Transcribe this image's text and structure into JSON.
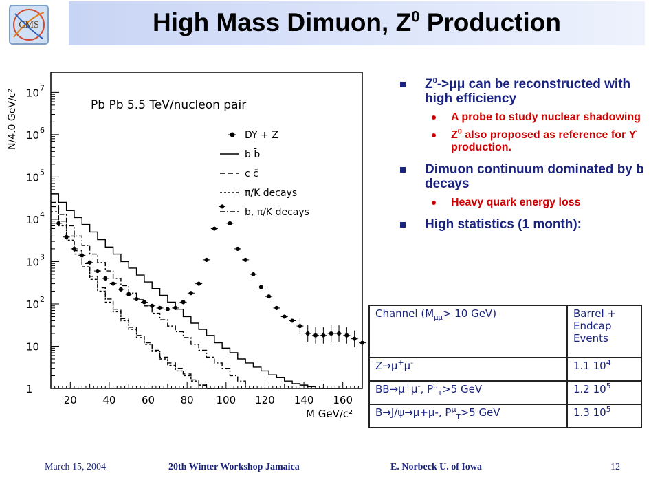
{
  "slide": {
    "title": "High Mass Dimuon, Z",
    "title_sup": "0",
    "title_suffix": " Production",
    "logo_text": "CMS"
  },
  "bullets": [
    {
      "level": 1,
      "html": "Z<sup>0</sup>-&gt;μμ can be reconstructed with high efficiency",
      "text": "Z0->μμ can be reconstructed with high efficiency"
    },
    {
      "level": 2,
      "html": "A probe to study nuclear shadowing",
      "text": "A probe to study nuclear shadowing"
    },
    {
      "level": 2,
      "html": "Z<sup>0</sup> also proposed as reference for ϒ production.",
      "text": "Z0 also proposed as reference for ϒ production."
    },
    {
      "level": 1,
      "html": "Dimuon continuum dominated by b decays",
      "text": "Dimuon continuum dominated by b decays"
    },
    {
      "level": 2,
      "html": "Heavy quark energy loss",
      "text": "Heavy quark energy loss"
    },
    {
      "level": 1,
      "html": "High statistics (1 month):",
      "text": "High statistics (1 month):"
    }
  ],
  "table": {
    "header": {
      "channel": "Channel (M<sub>μμ</sub>&gt; 10 GeV)",
      "events": "Barrel + Endcap<br>Events",
      "channel_text": "Channel (Mμμ> 10 GeV)",
      "events_text": "Barrel + Endcap Events"
    },
    "rows": [
      {
        "channel": "Z→μ<sup>+</sup>μ<sup>-</sup>",
        "events": "1.1 10<sup>4</sup>",
        "channel_text": "Z→μ+μ-",
        "events_text": "1.1 104"
      },
      {
        "channel": "BB→μ<sup>+</sup>μ<sup>-</sup>, P<sup>μ</sup><sub>T</sub>&gt;5 GeV",
        "events": "1.2 10<sup>5</sup>",
        "channel_text": "BB→μ+μ-, PμT>5 GeV",
        "events_text": "1.2 105"
      },
      {
        "channel": "B→J/ψ→μ+μ-, P<sup>μ</sup><sub>T</sub>&gt;5 GeV",
        "events": "1.3 10<sup>5</sup>",
        "channel_text": "B→J/ψ→μ+μ-, PμT>5 GeV",
        "events_text": "1.3 105"
      }
    ]
  },
  "footer": {
    "date": "March 15, 2004",
    "event": "20th Winter Workshop Jamaica",
    "author": "E. Norbeck U. of Iowa",
    "page": "12"
  },
  "chart_data": {
    "type": "line",
    "title": "",
    "xlabel": "M GeV/c²",
    "ylabel": "N/4.0 GeV/c²",
    "annotation": "Pb  Pb  5.5 TeV/nucleon pair",
    "log_y": true,
    "xlim": [
      10,
      170
    ],
    "ylim": [
      1,
      30000000
    ],
    "x_ticks": [
      20,
      40,
      60,
      80,
      100,
      120,
      140,
      160
    ],
    "y_ticks": [
      {
        "value": 1,
        "label": "1"
      },
      {
        "value": 10,
        "label": "10"
      },
      {
        "value": 100,
        "label": "10",
        "exp": "2"
      },
      {
        "value": 1000,
        "label": "10",
        "exp": "3"
      },
      {
        "value": 10000,
        "label": "10",
        "exp": "4"
      },
      {
        "value": 100000,
        "label": "10",
        "exp": "5"
      },
      {
        "value": 1000000,
        "label": "10",
        "exp": "6"
      },
      {
        "value": 10000000,
        "label": "10",
        "exp": "7"
      }
    ],
    "legend": [
      {
        "name": "DY + Z",
        "style": "points"
      },
      {
        "name": "b b̄",
        "style": "solid"
      },
      {
        "name": "c c̄",
        "style": "dashed"
      },
      {
        "name": "π/K decays",
        "style": "dotted"
      },
      {
        "name": "b, π/K decays",
        "style": "dashdot"
      }
    ],
    "series": [
      {
        "name": "DY + Z",
        "style": "points",
        "x": [
          12,
          16,
          20,
          24,
          28,
          32,
          36,
          40,
          44,
          48,
          52,
          56,
          60,
          64,
          68,
          72,
          76,
          80,
          84,
          88,
          92,
          96,
          100,
          104,
          108,
          112,
          116,
          120,
          124,
          128,
          132,
          136,
          140,
          144,
          148,
          152,
          156,
          160,
          164,
          168
        ],
        "y": [
          8000,
          3800,
          2000,
          1400,
          950,
          600,
          400,
          300,
          220,
          170,
          130,
          110,
          90,
          80,
          75,
          80,
          110,
          180,
          300,
          1100,
          6000,
          20000,
          8000,
          2000,
          1100,
          500,
          250,
          150,
          80,
          50,
          40,
          30,
          20,
          18,
          18,
          20,
          20,
          18,
          15,
          12
        ]
      },
      {
        "name": "b b̄",
        "style": "solid",
        "x": [
          10,
          14,
          18,
          22,
          26,
          30,
          34,
          38,
          42,
          46,
          50,
          54,
          58,
          62,
          66,
          70,
          74,
          78,
          82,
          86,
          90,
          94,
          98,
          102,
          106,
          110,
          114,
          118,
          122,
          126,
          130,
          134,
          138,
          142,
          146,
          150,
          154,
          158
        ],
        "y": [
          40000,
          25000,
          16000,
          11000,
          7500,
          5000,
          3300,
          2200,
          1500,
          1000,
          700,
          480,
          330,
          230,
          160,
          110,
          75,
          50,
          35,
          25,
          18,
          12,
          9,
          7,
          5,
          4,
          3.2,
          2.6,
          2.1,
          1.8,
          1.5,
          1.3,
          1.2,
          1.1,
          1.0,
          1.0,
          1.0,
          1.0
        ]
      },
      {
        "name": "c c̄",
        "style": "dashed",
        "x": [
          10,
          14,
          18,
          22,
          26,
          30,
          34,
          38,
          42,
          46,
          50,
          54,
          58,
          62,
          66,
          70,
          74,
          78,
          82,
          86,
          90
        ],
        "y": [
          20000,
          9000,
          4000,
          1800,
          900,
          450,
          240,
          130,
          75,
          45,
          28,
          18,
          12,
          8,
          5.5,
          4,
          3,
          2.2,
          1.6,
          1.2,
          1.0
        ]
      },
      {
        "name": "π/K decays",
        "style": "dotted",
        "x": [
          10,
          14,
          18,
          22,
          26,
          30,
          34,
          38,
          42,
          46,
          50,
          54,
          58,
          62,
          66,
          70,
          74,
          78,
          82,
          86,
          90,
          94
        ],
        "y": [
          15000,
          7000,
          3200,
          1500,
          750,
          380,
          200,
          110,
          65,
          40,
          25,
          16,
          11,
          7.5,
          5,
          3.5,
          2.6,
          2,
          1.5,
          1.2,
          1.0,
          1.0
        ]
      },
      {
        "name": "b, π/K decays",
        "style": "dashdot",
        "x": [
          10,
          14,
          18,
          22,
          26,
          30,
          34,
          38,
          42,
          46,
          50,
          54,
          58,
          62,
          66,
          70,
          74,
          78,
          82,
          86,
          90,
          94,
          98,
          102,
          106,
          110
        ],
        "y": [
          25000,
          13000,
          7000,
          4000,
          2400,
          1500,
          950,
          600,
          400,
          270,
          180,
          125,
          90,
          60,
          42,
          30,
          22,
          16,
          11,
          8,
          5.5,
          4,
          3,
          2,
          1.5,
          1.0
        ]
      }
    ]
  }
}
